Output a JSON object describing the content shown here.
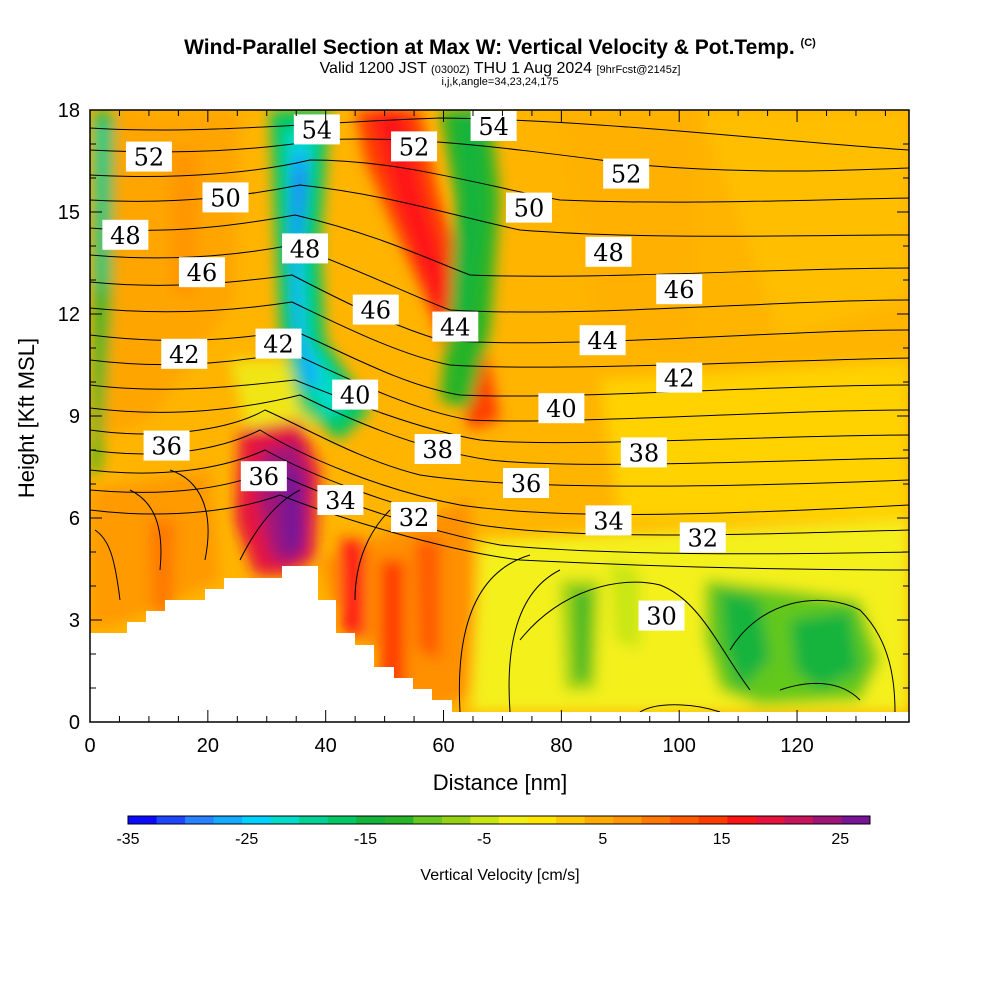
{
  "header": {
    "title": "Wind-Parallel Section at Max W: Vertical Velocity & Pot.Temp.",
    "copyright": "(C)",
    "valid_prefix": "Valid 1200 JST",
    "valid_utc": "(0300Z)",
    "valid_date": "THU 1 Aug 2024",
    "forecast": "[9hrFcst@2145z]",
    "indices": "i,j,k,angle=34,23,24,175"
  },
  "chart_data": {
    "type": "heatmap",
    "xlabel": "Distance [nm]",
    "ylabel": "Height [Kft MSL]",
    "xlim": [
      0,
      139
    ],
    "ylim": [
      0,
      18
    ],
    "x_ticks": [
      "0",
      "20",
      "40",
      "60",
      "80",
      "100",
      "120"
    ],
    "y_ticks": [
      "0",
      "3",
      "6",
      "9",
      "12",
      "15",
      "18"
    ],
    "colorbar": {
      "label": "Vertical Velocity [cm/s]",
      "min": -35,
      "max": 27.5,
      "step": 2.5,
      "tick_labels": [
        "-35",
        "-25",
        "-15",
        "-5",
        "5",
        "15",
        "25"
      ],
      "colors": [
        "#0a0aff",
        "#1e46ff",
        "#2882ff",
        "#14aaff",
        "#00d2ff",
        "#00dcc8",
        "#00d296",
        "#00c864",
        "#14b43c",
        "#28b428",
        "#64c81e",
        "#96d214",
        "#c8e614",
        "#f0f014",
        "#ffe600",
        "#ffc800",
        "#ffaa00",
        "#ff9600",
        "#ff7800",
        "#ff5a00",
        "#ff3c00",
        "#ff1414",
        "#e6143c",
        "#c8145a",
        "#a01478",
        "#781496"
      ]
    },
    "theta_contour_labels": [
      {
        "value": "52",
        "x": 10,
        "y": 16.6
      },
      {
        "value": "50",
        "x": 23,
        "y": 15.4
      },
      {
        "value": "48",
        "x": 6,
        "y": 14.3
      },
      {
        "value": "46",
        "x": 19,
        "y": 13.2
      },
      {
        "value": "42",
        "x": 16,
        "y": 10.8
      },
      {
        "value": "42",
        "x": 32,
        "y": 11.1
      },
      {
        "value": "48",
        "x": 36.5,
        "y": 13.9
      },
      {
        "value": "54",
        "x": 38.5,
        "y": 17.4
      },
      {
        "value": "52",
        "x": 55,
        "y": 16.9
      },
      {
        "value": "54",
        "x": 68.5,
        "y": 17.5
      },
      {
        "value": "50",
        "x": 74.5,
        "y": 15.1
      },
      {
        "value": "52",
        "x": 91,
        "y": 16.1
      },
      {
        "value": "48",
        "x": 88,
        "y": 13.8
      },
      {
        "value": "46",
        "x": 48.5,
        "y": 12.1
      },
      {
        "value": "44",
        "x": 62,
        "y": 11.6
      },
      {
        "value": "46",
        "x": 100,
        "y": 12.7
      },
      {
        "value": "44",
        "x": 87,
        "y": 11.2
      },
      {
        "value": "42",
        "x": 100,
        "y": 10.1
      },
      {
        "value": "40",
        "x": 45,
        "y": 9.6
      },
      {
        "value": "40",
        "x": 80,
        "y": 9.2
      },
      {
        "value": "38",
        "x": 59,
        "y": 8
      },
      {
        "value": "38",
        "x": 94,
        "y": 7.9
      },
      {
        "value": "36",
        "x": 13,
        "y": 8.1
      },
      {
        "value": "36",
        "x": 29.5,
        "y": 7.2
      },
      {
        "value": "34",
        "x": 42.5,
        "y": 6.5
      },
      {
        "value": "36",
        "x": 74,
        "y": 7
      },
      {
        "value": "32",
        "x": 55,
        "y": 6
      },
      {
        "value": "34",
        "x": 88,
        "y": 5.9
      },
      {
        "value": "32",
        "x": 104,
        "y": 5.4
      },
      {
        "value": "30",
        "x": 97,
        "y": 3.1
      }
    ]
  }
}
